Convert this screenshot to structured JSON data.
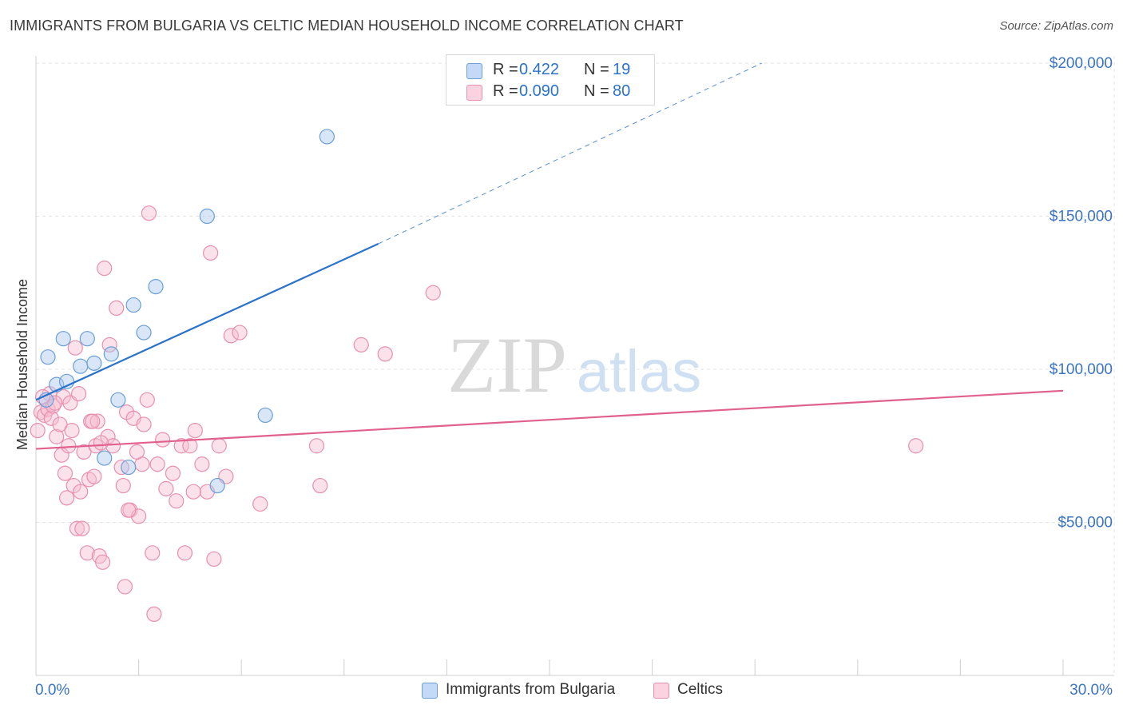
{
  "header": {
    "title": "IMMIGRANTS FROM BULGARIA VS CELTIC MEDIAN HOUSEHOLD INCOME CORRELATION CHART",
    "source": "Source: ZipAtlas.com"
  },
  "watermark": {
    "zip": "ZIP",
    "atlas": "atlas"
  },
  "legend": {
    "r_label": "R =",
    "n_label": "N =",
    "series": [
      {
        "name": "Immigrants from Bulgaria",
        "r": "0.422",
        "n": "19",
        "color": "#a8c8f0",
        "stroke": "#6a9fd8",
        "line": "#2a72cc"
      },
      {
        "name": "Celtics",
        "r": "0.090",
        "n": "80",
        "color": "#f7bcd0",
        "stroke": "#e890ae",
        "line": "#e0608e"
      }
    ]
  },
  "chart_data": {
    "type": "scatter",
    "title": "IMMIGRANTS FROM BULGARIA VS CELTIC MEDIAN HOUSEHOLD INCOME CORRELATION CHART",
    "xlabel": "",
    "ylabel": "Median Household Income",
    "xlim": [
      0,
      30
    ],
    "ylim": [
      0,
      210000
    ],
    "x_tick_labels": [
      "0.0%",
      "30.0%"
    ],
    "y_ticks": [
      50000,
      100000,
      150000,
      200000
    ],
    "y_tick_labels": [
      "$50,000",
      "$100,000",
      "$150,000",
      "$200,000"
    ],
    "series": [
      {
        "name": "Immigrants from Bulgaria",
        "points": [
          [
            0.3,
            90000
          ],
          [
            0.35,
            104000
          ],
          [
            0.6,
            95000
          ],
          [
            0.8,
            110000
          ],
          [
            0.9,
            96000
          ],
          [
            1.3,
            101000
          ],
          [
            1.5,
            110000
          ],
          [
            1.7,
            102000
          ],
          [
            2.2,
            105000
          ],
          [
            2.4,
            90000
          ],
          [
            2.7,
            68000
          ],
          [
            2.85,
            121000
          ],
          [
            3.15,
            112000
          ],
          [
            3.5,
            127000
          ],
          [
            5.0,
            150000
          ],
          [
            5.3,
            62000
          ],
          [
            6.7,
            85000
          ],
          [
            8.5,
            176000
          ],
          [
            2.0,
            71000
          ]
        ],
        "trend": {
          "x0": 0,
          "y0": 90000,
          "x1": 10,
          "y1": 141000,
          "dash_x1": 21.2,
          "dash_y1": 200000
        }
      },
      {
        "name": "Celtics",
        "points": [
          [
            0.05,
            80000
          ],
          [
            0.15,
            86000
          ],
          [
            0.25,
            85000
          ],
          [
            0.35,
            87000
          ],
          [
            0.4,
            92000
          ],
          [
            0.45,
            84000
          ],
          [
            0.5,
            88000
          ],
          [
            0.6,
            78000
          ],
          [
            0.7,
            82000
          ],
          [
            0.75,
            72000
          ],
          [
            0.8,
            91000
          ],
          [
            0.9,
            58000
          ],
          [
            0.95,
            75000
          ],
          [
            1.0,
            89000
          ],
          [
            1.05,
            80000
          ],
          [
            1.1,
            62000
          ],
          [
            1.15,
            107000
          ],
          [
            1.2,
            48000
          ],
          [
            1.25,
            92000
          ],
          [
            1.3,
            60000
          ],
          [
            1.4,
            73000
          ],
          [
            1.5,
            40000
          ],
          [
            1.55,
            64000
          ],
          [
            1.6,
            83000
          ],
          [
            1.7,
            65000
          ],
          [
            1.75,
            75000
          ],
          [
            1.8,
            83000
          ],
          [
            1.85,
            39000
          ],
          [
            1.95,
            37000
          ],
          [
            2.0,
            133000
          ],
          [
            2.1,
            78000
          ],
          [
            2.15,
            108000
          ],
          [
            2.25,
            75000
          ],
          [
            2.35,
            120000
          ],
          [
            2.5,
            68000
          ],
          [
            2.55,
            62000
          ],
          [
            2.6,
            29000
          ],
          [
            2.65,
            86000
          ],
          [
            2.75,
            54000
          ],
          [
            2.85,
            84000
          ],
          [
            3.0,
            52000
          ],
          [
            3.1,
            69000
          ],
          [
            3.15,
            82000
          ],
          [
            3.25,
            90000
          ],
          [
            3.3,
            151000
          ],
          [
            3.4,
            40000
          ],
          [
            3.45,
            20000
          ],
          [
            3.55,
            69000
          ],
          [
            3.8,
            61000
          ],
          [
            4.0,
            66000
          ],
          [
            4.1,
            57000
          ],
          [
            4.25,
            75000
          ],
          [
            4.35,
            40000
          ],
          [
            4.5,
            75000
          ],
          [
            4.65,
            80000
          ],
          [
            4.85,
            69000
          ],
          [
            5.0,
            60000
          ],
          [
            5.1,
            138000
          ],
          [
            5.2,
            38000
          ],
          [
            5.35,
            75000
          ],
          [
            5.55,
            65000
          ],
          [
            5.7,
            111000
          ],
          [
            5.95,
            112000
          ],
          [
            6.55,
            56000
          ],
          [
            8.2,
            75000
          ],
          [
            8.3,
            62000
          ],
          [
            9.5,
            108000
          ],
          [
            10.2,
            105000
          ],
          [
            11.6,
            125000
          ],
          [
            25.7,
            75000
          ],
          [
            0.55,
            89000
          ],
          [
            1.35,
            48000
          ],
          [
            2.7,
            54000
          ],
          [
            3.7,
            77000
          ],
          [
            0.2,
            91000
          ],
          [
            1.65,
            83000
          ],
          [
            2.95,
            73000
          ],
          [
            4.6,
            60000
          ],
          [
            0.85,
            66000
          ],
          [
            1.9,
            76000
          ]
        ],
        "trend": {
          "x0": 0,
          "y0": 74000,
          "x1": 30,
          "y1": 93000
        }
      }
    ]
  }
}
